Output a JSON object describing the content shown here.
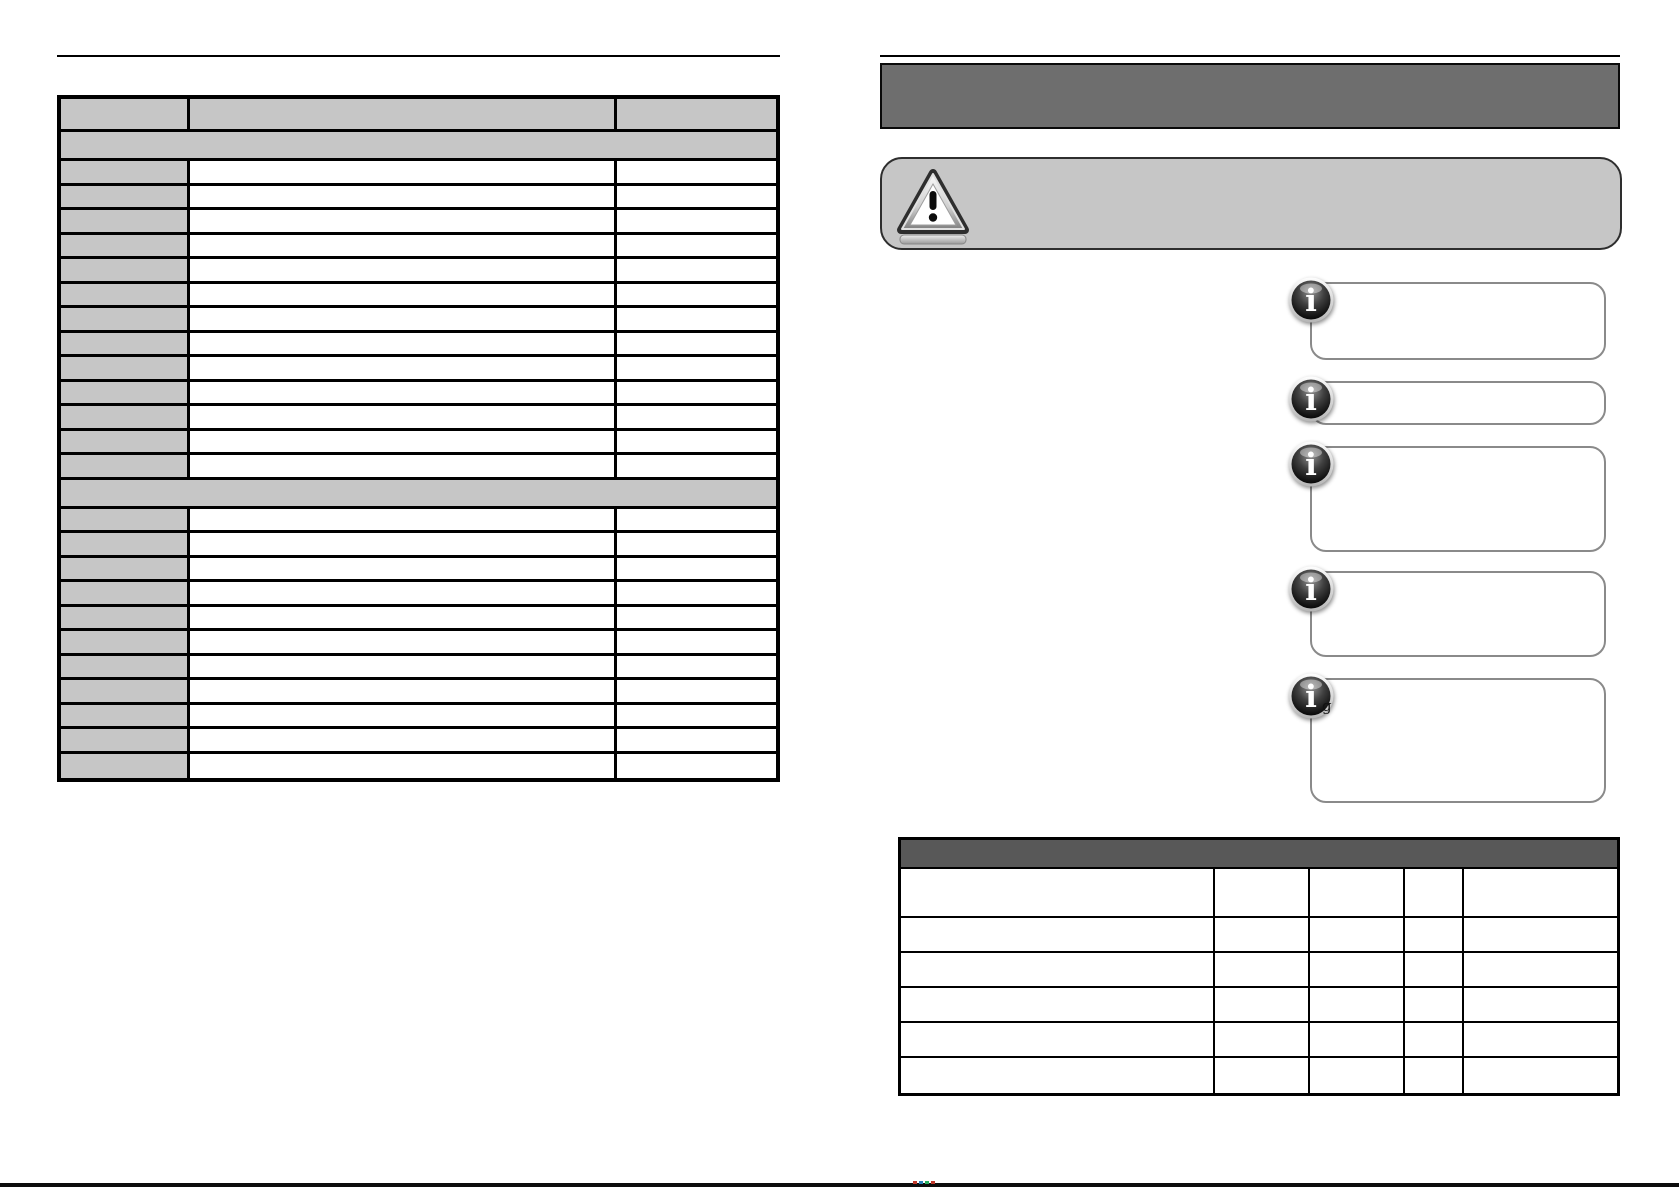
{
  "colors": {
    "title_bar": "#6e6e6e",
    "bottom_table_header": "#585858",
    "table_gray": "#c6c6c6",
    "table_border": "#000000",
    "callout_border": "#8a8a8a",
    "footer_rule": "#0d0d0d"
  },
  "icons": {
    "info-icon": "i",
    "warning-triangle-icon": "!"
  },
  "left_table": {
    "columns": 3,
    "header_cells": [
      "",
      "",
      ""
    ],
    "sections": [
      {
        "heading": "",
        "rows": 13
      },
      {
        "heading": "",
        "rows": 11
      }
    ]
  },
  "right_page": {
    "title_bar": {
      "text": ""
    },
    "warning_box": {
      "icon": "warning-triangle-icon",
      "text": ""
    },
    "callouts": [
      {
        "icon": "info-icon",
        "text": ""
      },
      {
        "icon": "info-icon",
        "text": ""
      },
      {
        "icon": "info-icon",
        "text": ""
      },
      {
        "icon": "info-icon",
        "text": ""
      },
      {
        "icon": "info-icon",
        "text": "g"
      }
    ],
    "bottom_table": {
      "header_text": "",
      "columns": 5,
      "rows": 6
    }
  },
  "footer": {
    "mark_colors": [
      "#c0392b",
      "#2980b9",
      "#27ae60",
      "#c0392b"
    ]
  }
}
